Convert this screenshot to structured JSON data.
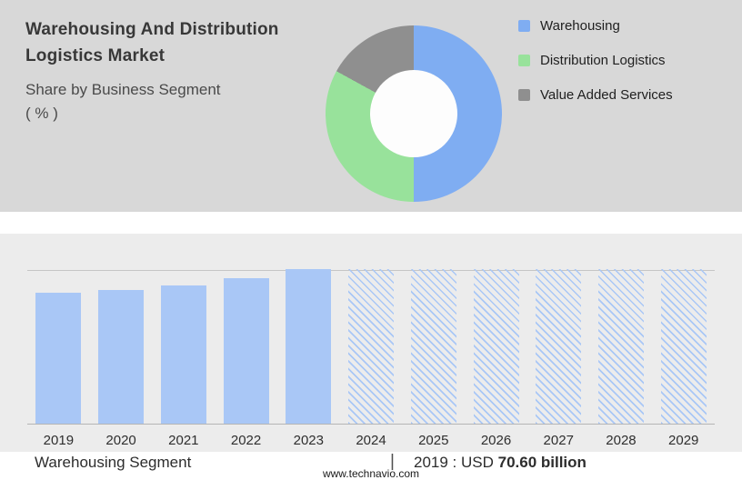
{
  "header": {
    "title_line1": "Warehousing And Distribution",
    "title_line2": "Logistics Market",
    "subtitle": "Share by Business Segment",
    "unit": "( % )"
  },
  "legend": {
    "position": "right",
    "items": [
      {
        "label": "Warehousing",
        "color": "#7fadf2"
      },
      {
        "label": "Distribution Logistics",
        "color": "#98e29b"
      },
      {
        "label": "Value Added Services",
        "color": "#8f8f8f"
      }
    ]
  },
  "segment_row": {
    "segment_label": "Warehousing Segment",
    "separator": "|",
    "value_prefix": "2019 : USD ",
    "value_bold": "70.60 billion"
  },
  "footer": {
    "website": "www.technavio.com"
  },
  "colors": {
    "top_panel_bg": "#d8d8d8",
    "bottom_panel_bg": "#ececec",
    "bar_solid": "#a9c7f6",
    "donut_hole": "#fdfdfd"
  },
  "chart_data": [
    {
      "type": "pie",
      "subtype": "donut",
      "title": "Share by Business Segment ( % )",
      "labels": [
        "Warehousing",
        "Distribution Logistics",
        "Value Added Services"
      ],
      "values": [
        50,
        33,
        17
      ],
      "colors": [
        "#7fadf2",
        "#98e29b",
        "#8f8f8f"
      ],
      "legend_position": "right",
      "start_angle_deg": 0,
      "direction": "clockwise"
    },
    {
      "type": "bar",
      "title": "Warehousing Segment market size by year",
      "categories": [
        "2019",
        "2020",
        "2021",
        "2022",
        "2023",
        "2024",
        "2025",
        "2026",
        "2027",
        "2028",
        "2029"
      ],
      "series": [
        {
          "name": "Warehousing Segment",
          "values_rel": [
            0.85,
            0.862,
            0.895,
            0.94,
            1.0,
            1.0,
            1.0,
            1.0,
            1.0,
            1.0,
            1.0
          ],
          "values_usd_billion_est": [
            70.6,
            71.2,
            74.0,
            77.9,
            82.8,
            null,
            null,
            null,
            null,
            null,
            null
          ]
        }
      ],
      "solid_years": [
        "2019",
        "2020",
        "2021",
        "2022",
        "2023"
      ],
      "hatched_years": [
        "2024",
        "2025",
        "2026",
        "2027",
        "2028",
        "2029"
      ],
      "hatched_meaning": "forecast placeholder bars at full height",
      "annotation": "2019 : USD 70.60 billion",
      "ylim": [
        0,
        1
      ],
      "grid": "top rule and baseline only, no y-axis labels"
    }
  ]
}
